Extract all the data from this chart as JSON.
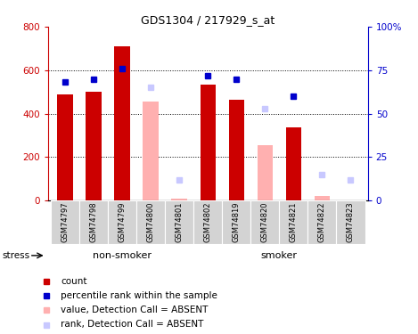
{
  "title": "GDS1304 / 217929_s_at",
  "samples": [
    "GSM74797",
    "GSM74798",
    "GSM74799",
    "GSM74800",
    "GSM74801",
    "GSM74802",
    "GSM74819",
    "GSM74820",
    "GSM74821",
    "GSM74822",
    "GSM74823"
  ],
  "non_smoker_count": 5,
  "count_values": [
    490,
    500,
    710,
    null,
    null,
    535,
    465,
    null,
    335,
    null,
    null
  ],
  "rank_values": [
    68,
    70,
    76,
    null,
    null,
    72,
    70,
    null,
    60,
    null,
    null
  ],
  "absent_count_values": [
    null,
    null,
    null,
    455,
    10,
    null,
    null,
    255,
    null,
    20,
    null
  ],
  "absent_rank_values": [
    null,
    null,
    null,
    65,
    12,
    null,
    null,
    53,
    null,
    15,
    12
  ],
  "ylim_left": [
    0,
    800
  ],
  "ylim_right": [
    0,
    100
  ],
  "yticks_left": [
    0,
    200,
    400,
    600,
    800
  ],
  "yticks_right": [
    0,
    25,
    50,
    75,
    100
  ],
  "ytick_labels_right": [
    "0",
    "25",
    "50",
    "75",
    "100%"
  ],
  "color_count": "#cc0000",
  "color_rank": "#0000cc",
  "color_absent_count": "#ffb0b0",
  "color_absent_rank": "#c8c8ff",
  "group_bg_color": "#90ee90",
  "tick_area_color": "#d3d3d3",
  "stress_label": "stress",
  "grid_lines": [
    200,
    400,
    600
  ],
  "legend_items": [
    [
      "#cc0000",
      "count"
    ],
    [
      "#0000cc",
      "percentile rank within the sample"
    ],
    [
      "#ffb0b0",
      "value, Detection Call = ABSENT"
    ],
    [
      "#c8c8ff",
      "rank, Detection Call = ABSENT"
    ]
  ]
}
